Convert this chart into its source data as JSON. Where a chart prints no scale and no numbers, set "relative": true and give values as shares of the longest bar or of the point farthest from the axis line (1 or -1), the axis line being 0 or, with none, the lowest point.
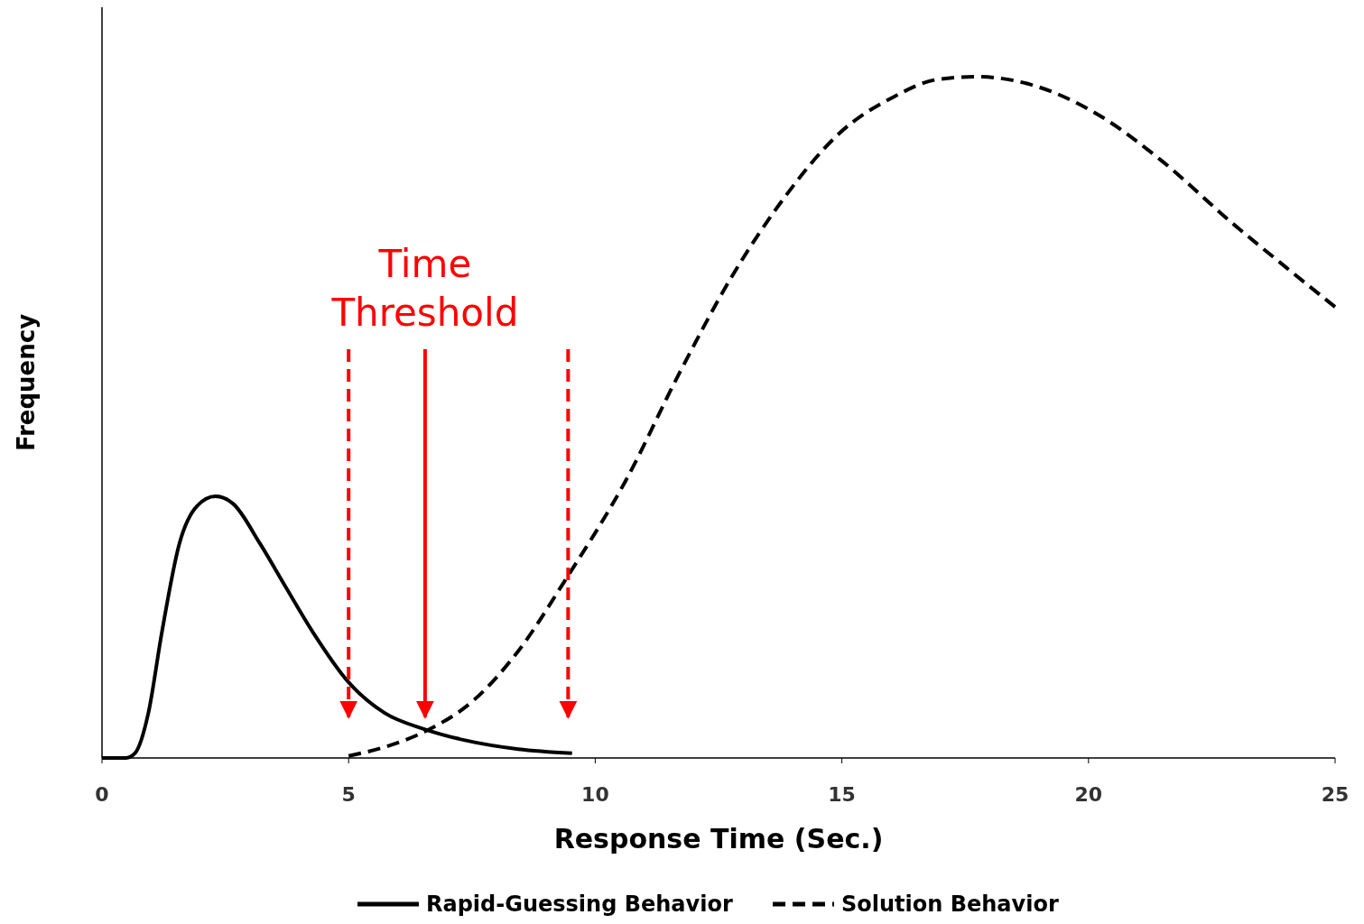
{
  "chart_data": {
    "type": "line",
    "relative": true,
    "xlabel": "Response Time (Sec.)",
    "ylabel": "Frequency",
    "xlim": [
      0,
      25
    ],
    "xticks": [
      0,
      5,
      10,
      15,
      20,
      25
    ],
    "grid": false,
    "legend": "bottom",
    "series": [
      {
        "name": "Rapid-Guessing Behavior",
        "color": "#000000",
        "line_style": "solid",
        "x": [
          0,
          0.49,
          0.67,
          0.94,
          1.21,
          1.57,
          1.93,
          2.3,
          2.66,
          3.2,
          3.74,
          4.29,
          5.0,
          5.73,
          6.55,
          7.36,
          8.44,
          9.53
        ],
        "values": [
          0,
          0,
          0.007,
          0.066,
          0.183,
          0.315,
          0.37,
          0.384,
          0.373,
          0.315,
          0.249,
          0.183,
          0.111,
          0.066,
          0.042,
          0.026,
          0.013,
          0.007
        ]
      },
      {
        "name": "Solution Behavior",
        "color": "#000000",
        "line_style": "dashed",
        "x": [
          5.0,
          5.73,
          6.55,
          7.54,
          8.44,
          9.4,
          10.61,
          11.7,
          12.78,
          13.87,
          14.95,
          16.04,
          16.94,
          17.72,
          18.75,
          20.2,
          21.46,
          22.9,
          23.99,
          25
        ],
        "values": [
          0.003,
          0.016,
          0.039,
          0.085,
          0.157,
          0.262,
          0.406,
          0.564,
          0.708,
          0.826,
          0.917,
          0.97,
          0.996,
          1,
          0.99,
          0.944,
          0.878,
          0.786,
          0.721,
          0.662
        ]
      }
    ],
    "ref_lines": [
      {
        "axis": "x",
        "value": 5,
        "color": "#ff0000",
        "line_style": "dashed"
      },
      {
        "axis": "x",
        "value": 6.55,
        "label": "Time Threshold",
        "color": "#ff0000",
        "line_style": "solid"
      },
      {
        "axis": "x",
        "value": 9.45,
        "color": "#ff0000",
        "line_style": "dashed"
      }
    ]
  }
}
